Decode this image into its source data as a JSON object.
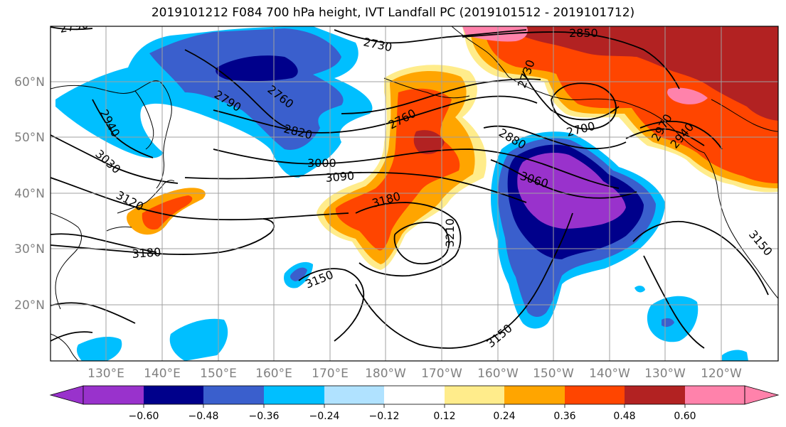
{
  "title": "2019101212 F084 700 hPa height, IVT Landfall PC (2019101512 - 2019101712)",
  "lat_labels": [
    "60°N",
    "50°N",
    "40°N",
    "30°N",
    "20°N"
  ],
  "lon_labels": [
    "130°E",
    "140°E",
    "150°E",
    "160°E",
    "170°E",
    "180°W",
    "170°W",
    "160°W",
    "150°W",
    "140°W",
    "130°W",
    "120°W"
  ],
  "contour_labels": [
    "2790",
    "2730",
    "2850",
    "2790",
    "2760",
    "2730",
    "2700",
    "2760",
    "2880",
    "2940",
    "2820",
    "3030",
    "3000",
    "3090",
    "3120",
    "3060",
    "3180",
    "3210",
    "3180",
    "3150",
    "3150",
    "2970",
    "2940",
    "3150"
  ],
  "colorbar": {
    "tick_labels": [
      "−0.60",
      "−0.48",
      "−0.36",
      "−0.24",
      "−0.12",
      "0.12",
      "0.24",
      "0.36",
      "0.48",
      "0.60"
    ],
    "colors": [
      "#9932CC",
      "#00008B",
      "#3A5FCD",
      "#00BFFF",
      "#B0E2FF",
      "#FFFFFF",
      "#FFEC8B",
      "#FFA500",
      "#FF4500",
      "#B22222",
      "#FF82AB"
    ]
  },
  "colors": {
    "neg_strong": "#9932CC",
    "neg_dark": "#00008B",
    "neg_mid": "#3A5FCD",
    "neg_light": "#00BFFF",
    "neg_pale": "#B0E2FF",
    "pos_pale": "#FFEC8B",
    "pos_orange": "#FFA500",
    "pos_red": "#FF4500",
    "pos_dark": "#B22222",
    "pos_pink": "#FF82AB"
  }
}
